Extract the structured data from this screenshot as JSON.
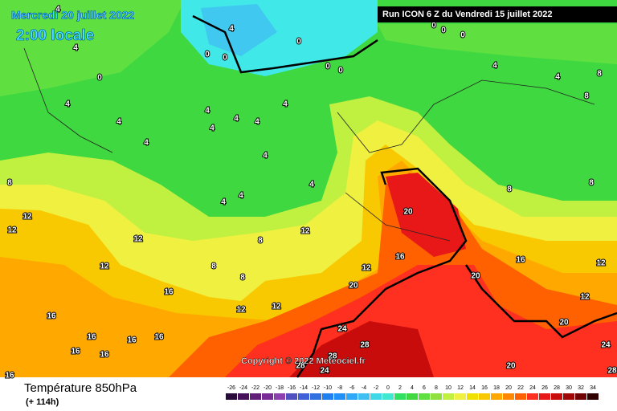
{
  "header": {
    "date": "Mercredi 20 juillet 2022",
    "time": "2:00 locale",
    "run": "Run ICON 6 Z du Vendredi 15 juillet 2022"
  },
  "copyright": "Copyright © 2022 Meteociel.fr",
  "footer": {
    "title": "Température 850hPa",
    "lead": "(+ 114h)"
  },
  "legend": {
    "ticks": [
      -26,
      -24,
      -22,
      -20,
      -18,
      -16,
      -14,
      -12,
      -10,
      -8,
      -6,
      -4,
      -2,
      0,
      2,
      4,
      6,
      8,
      10,
      12,
      14,
      16,
      18,
      20,
      22,
      24,
      26,
      28,
      30,
      32,
      34
    ],
    "colors": [
      "#2a0a3a",
      "#46105a",
      "#62207a",
      "#7a2a96",
      "#8c40b0",
      "#5050c0",
      "#4060d8",
      "#3070e0",
      "#2080f0",
      "#2090f8",
      "#30a8f8",
      "#40c0f0",
      "#40d8e8",
      "#40e8d0",
      "#30e060",
      "#40d840",
      "#60e040",
      "#90e040",
      "#c0f040",
      "#f0f040",
      "#f0e000",
      "#f8c800",
      "#ffa800",
      "#ff8800",
      "#ff6000",
      "#ff3020",
      "#e81818",
      "#c80c0c",
      "#a00808",
      "#700404",
      "#300000"
    ]
  },
  "contour_labels": [
    4,
    4,
    0,
    0,
    0,
    0,
    0,
    0,
    0,
    0,
    0,
    4,
    4,
    4,
    4,
    4,
    4,
    4,
    4,
    4,
    4,
    4,
    4,
    4,
    4,
    4,
    8,
    8,
    8,
    8,
    8,
    12,
    12,
    12,
    12,
    12,
    8,
    8,
    8,
    12,
    16,
    20,
    20,
    20,
    16,
    12,
    12,
    12,
    12,
    16,
    16,
    16,
    16,
    16,
    16,
    16,
    16,
    24,
    28,
    28,
    24,
    28,
    20,
    24,
    20,
    28
  ]
}
